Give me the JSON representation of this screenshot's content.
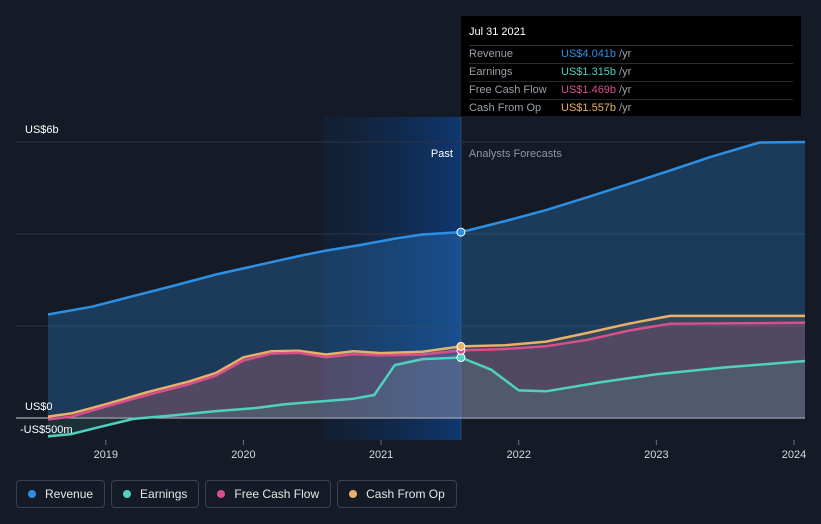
{
  "chart_data": {
    "type": "area",
    "y_unit_labels": {
      "top": "US$6b",
      "zero": "US$0",
      "bottom": "-US$500m"
    },
    "ylim": [
      -500,
      6000
    ],
    "xlim": [
      2018.58,
      2024.08
    ],
    "x_ticks": [
      2019,
      2020,
      2021,
      2022,
      2023,
      2024
    ],
    "x_tick_labels": [
      "2019",
      "2020",
      "2021",
      "2022",
      "2023",
      "2024"
    ],
    "past_label": "Past",
    "forecast_label": "Analysts Forecasts",
    "past_end": 2021.58,
    "highlight_start": 2020.58,
    "series": [
      {
        "name": "Revenue",
        "color": "#2d8fe3",
        "points": [
          [
            2018.58,
            2250
          ],
          [
            2018.9,
            2420
          ],
          [
            2019.2,
            2650
          ],
          [
            2019.5,
            2880
          ],
          [
            2019.8,
            3120
          ],
          [
            2020.1,
            3320
          ],
          [
            2020.4,
            3520
          ],
          [
            2020.6,
            3640
          ],
          [
            2020.85,
            3760
          ],
          [
            2021.1,
            3900
          ],
          [
            2021.3,
            3990
          ],
          [
            2021.58,
            4041
          ],
          [
            2021.9,
            4280
          ],
          [
            2022.2,
            4520
          ],
          [
            2022.5,
            4800
          ],
          [
            2022.8,
            5090
          ],
          [
            2023.1,
            5380
          ],
          [
            2023.4,
            5680
          ],
          [
            2023.75,
            5990
          ],
          [
            2024.08,
            6000
          ]
        ]
      },
      {
        "name": "Earnings",
        "color": "#4fd1bd",
        "points": [
          [
            2018.58,
            -400
          ],
          [
            2018.75,
            -350
          ],
          [
            2018.95,
            -200
          ],
          [
            2019.2,
            -20
          ],
          [
            2019.5,
            60
          ],
          [
            2019.8,
            150
          ],
          [
            2020.1,
            220
          ],
          [
            2020.3,
            300
          ],
          [
            2020.6,
            370
          ],
          [
            2020.8,
            420
          ],
          [
            2020.95,
            500
          ],
          [
            2021.1,
            1150
          ],
          [
            2021.3,
            1280
          ],
          [
            2021.58,
            1315
          ],
          [
            2021.8,
            1050
          ],
          [
            2022.0,
            600
          ],
          [
            2022.2,
            580
          ],
          [
            2022.6,
            780
          ],
          [
            2023.0,
            950
          ],
          [
            2023.5,
            1100
          ],
          [
            2024.08,
            1240
          ]
        ]
      },
      {
        "name": "Free Cash Flow",
        "color": "#d84f8a",
        "points": [
          [
            2018.58,
            -30
          ],
          [
            2018.75,
            30
          ],
          [
            2019.0,
            250
          ],
          [
            2019.3,
            500
          ],
          [
            2019.6,
            730
          ],
          [
            2019.8,
            920
          ],
          [
            2020.0,
            1250
          ],
          [
            2020.2,
            1400
          ],
          [
            2020.4,
            1420
          ],
          [
            2020.6,
            1320
          ],
          [
            2020.8,
            1390
          ],
          [
            2021.0,
            1360
          ],
          [
            2021.3,
            1380
          ],
          [
            2021.58,
            1469
          ],
          [
            2021.9,
            1500
          ],
          [
            2022.2,
            1560
          ],
          [
            2022.5,
            1700
          ],
          [
            2022.8,
            1900
          ],
          [
            2023.1,
            2050
          ],
          [
            2024.08,
            2070
          ]
        ]
      },
      {
        "name": "Cash From Op",
        "color": "#e8b06a",
        "points": [
          [
            2018.58,
            30
          ],
          [
            2018.75,
            100
          ],
          [
            2019.0,
            300
          ],
          [
            2019.3,
            560
          ],
          [
            2019.6,
            790
          ],
          [
            2019.8,
            980
          ],
          [
            2020.0,
            1320
          ],
          [
            2020.2,
            1450
          ],
          [
            2020.4,
            1460
          ],
          [
            2020.6,
            1380
          ],
          [
            2020.8,
            1450
          ],
          [
            2021.0,
            1410
          ],
          [
            2021.3,
            1440
          ],
          [
            2021.58,
            1557
          ],
          [
            2021.9,
            1580
          ],
          [
            2022.2,
            1660
          ],
          [
            2022.5,
            1850
          ],
          [
            2022.8,
            2050
          ],
          [
            2023.1,
            2220
          ],
          [
            2024.08,
            2220
          ]
        ]
      }
    ],
    "grid": true
  },
  "tooltip": {
    "date": "Jul 31 2021",
    "rows": [
      {
        "name": "Revenue",
        "value": "US$4.041b",
        "unit": "/yr",
        "color": "#2d8fe3"
      },
      {
        "name": "Earnings",
        "value": "US$1.315b",
        "unit": "/yr",
        "color": "#4fd1bd"
      },
      {
        "name": "Free Cash Flow",
        "value": "US$1.469b",
        "unit": "/yr",
        "color": "#d84f8a"
      },
      {
        "name": "Cash From Op",
        "value": "US$1.557b",
        "unit": "/yr",
        "color": "#e8b06a"
      }
    ]
  },
  "legend": [
    {
      "label": "Revenue",
      "color": "#2d8fe3"
    },
    {
      "label": "Earnings",
      "color": "#4fd1bd"
    },
    {
      "label": "Free Cash Flow",
      "color": "#d84f8a"
    },
    {
      "label": "Cash From Op",
      "color": "#e8b06a"
    }
  ]
}
